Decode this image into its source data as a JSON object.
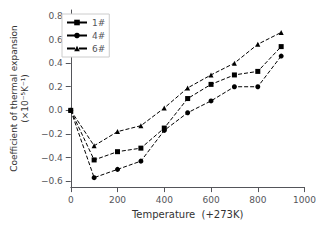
{
  "chart_data": {
    "type": "line",
    "xlabel": "Temperature  (+273K)",
    "ylabel": "Coefficient of thermal expansion\n(×10⁻⁵K⁻¹)",
    "xlim": [
      0,
      1000
    ],
    "ylim": [
      -0.65,
      0.85
    ],
    "xticks": [
      0,
      200,
      400,
      600,
      800,
      1000
    ],
    "yticks": [
      {
        "value": -0.6,
        "label": "−0.6"
      },
      {
        "value": -0.4,
        "label": "−0.4"
      },
      {
        "value": -0.2,
        "label": "−0.2"
      },
      {
        "value": 0.0,
        "label": "0.0"
      },
      0.2,
      0.4,
      0.6,
      0.8
    ],
    "series": [
      {
        "name": "1#",
        "marker": "square",
        "line_style": "dashed",
        "color": "#000000",
        "x": [
          0,
          100,
          200,
          300,
          400,
          500,
          600,
          700,
          800,
          900
        ],
        "values": [
          0.0,
          -0.42,
          -0.35,
          -0.32,
          -0.15,
          0.1,
          0.22,
          0.3,
          0.33,
          0.54
        ]
      },
      {
        "name": "4#",
        "marker": "circle",
        "line_style": "dashed",
        "color": "#000000",
        "x": [
          0,
          100,
          200,
          300,
          400,
          500,
          600,
          700,
          800,
          900
        ],
        "values": [
          0.0,
          -0.57,
          -0.5,
          -0.43,
          -0.17,
          -0.02,
          0.08,
          0.2,
          0.2,
          0.46
        ]
      },
      {
        "name": "6#",
        "marker": "triangle",
        "line_style": "dashed",
        "color": "#000000",
        "x": [
          0,
          100,
          200,
          300,
          400,
          500,
          600,
          700,
          800,
          900
        ],
        "values": [
          0.0,
          -0.3,
          -0.18,
          -0.13,
          0.02,
          0.19,
          0.3,
          0.4,
          0.56,
          0.66
        ]
      }
    ],
    "grid": false,
    "legend": "upper left"
  }
}
